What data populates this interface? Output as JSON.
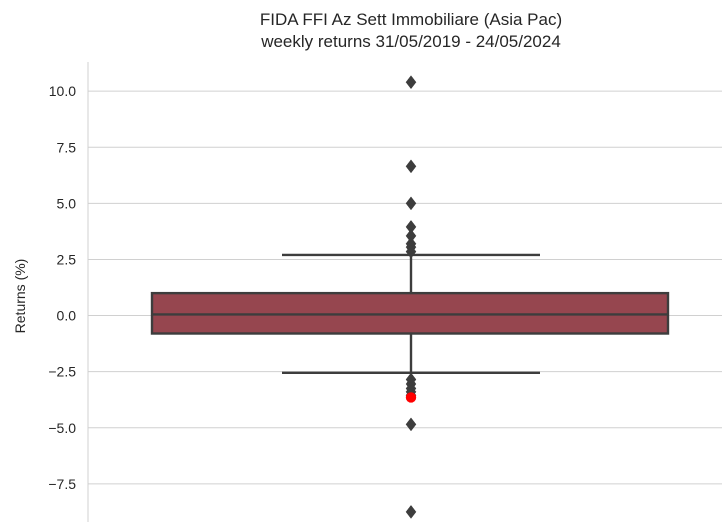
{
  "chart_data": {
    "type": "box",
    "title": [
      "FIDA FFI Az Sett Immobiliare (Asia Pac)",
      "weekly returns 31/05/2019 - 24/05/2024"
    ],
    "xlabel": "",
    "ylabel": "Returns (%)",
    "ylim": [
      -9.2,
      11.3
    ],
    "yticks": [
      10.0,
      7.5,
      5.0,
      2.5,
      0.0,
      -2.5,
      -5.0,
      -7.5
    ],
    "ytick_labels": [
      "10.0",
      "7.5",
      "5.0",
      "2.5",
      "0.0",
      "−2.5",
      "−5.0",
      "−7.5"
    ],
    "grid": true,
    "box": {
      "q1": -0.8,
      "median": 0.05,
      "q3": 1.0,
      "whisker_low": -2.55,
      "whisker_high": 2.7,
      "fill_color": "#96464f",
      "line_color": "#3d3d3d"
    },
    "outliers": [
      10.4,
      6.65,
      5.0,
      3.95,
      3.55,
      3.2,
      3.05,
      2.85,
      -2.85,
      -3.05,
      -3.25,
      -3.4,
      -3.55,
      -4.85,
      -8.75
    ],
    "highlight": {
      "value": -3.65,
      "color": "#ff0000"
    }
  }
}
